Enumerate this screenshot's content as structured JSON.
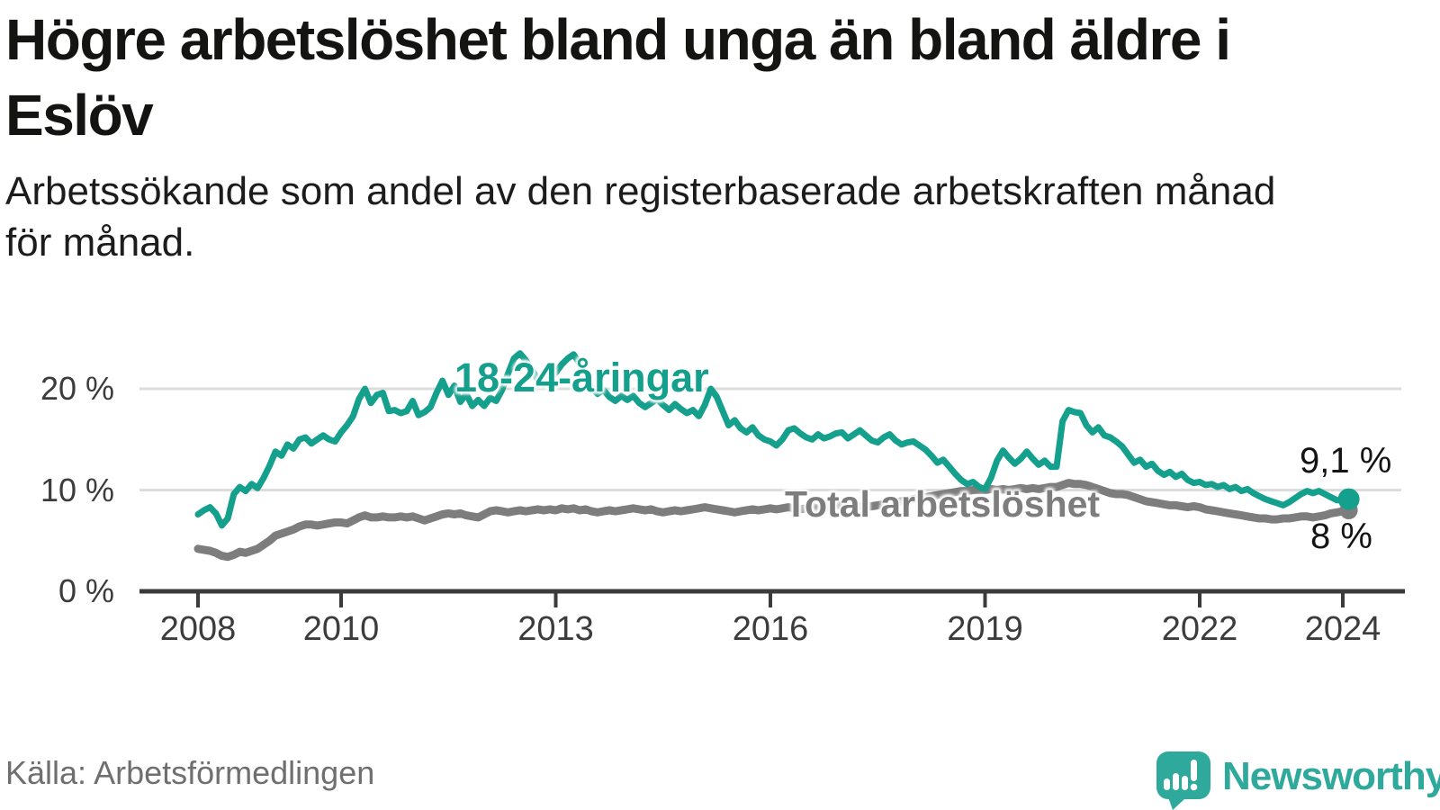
{
  "header": {
    "title_lines": [
      "Högre arbetslöshet bland unga än bland äldre i",
      "Eslöv"
    ],
    "subtitle_lines": [
      "Arbetssökande som andel av den registerbaserade arbetskraften månad",
      "för månad."
    ]
  },
  "chart_data": {
    "type": "line",
    "unit": "%",
    "x_start_year": 2008,
    "points_per_year": 12,
    "x_end": "2024-02",
    "grid": "horizontal",
    "ylim": [
      0,
      25
    ],
    "y_ticks": [
      {
        "value": 0,
        "label": "0 %"
      },
      {
        "value": 10,
        "label": "10 %"
      },
      {
        "value": 20,
        "label": "20 %"
      }
    ],
    "x_ticks": [
      {
        "year": 2008,
        "label": "2008"
      },
      {
        "year": 2010,
        "label": "2010"
      },
      {
        "year": 2013,
        "label": "2013"
      },
      {
        "year": 2016,
        "label": "2016"
      },
      {
        "year": 2019,
        "label": "2019"
      },
      {
        "year": 2022,
        "label": "2022"
      },
      {
        "year": 2024,
        "label": "2024"
      }
    ],
    "series": [
      {
        "id": "18-24",
        "name": "18-24-åringar",
        "color": "#15a08d",
        "end_label": "9,1 %",
        "values": [
          7.6,
          8.0,
          8.3,
          7.7,
          6.5,
          7.2,
          9.6,
          10.3,
          9.9,
          10.6,
          10.2,
          11.2,
          12.4,
          13.8,
          13.4,
          14.5,
          14.1,
          15.0,
          15.2,
          14.6,
          15.0,
          15.4,
          15.0,
          14.8,
          15.7,
          16.4,
          17.3,
          19.0,
          20.0,
          18.6,
          19.4,
          19.6,
          17.8,
          17.9,
          17.6,
          17.8,
          18.8,
          17.4,
          17.7,
          18.2,
          19.6,
          20.8,
          19.4,
          20.3,
          18.7,
          19.5,
          18.3,
          18.9,
          18.3,
          19.1,
          18.8,
          19.9,
          21.5,
          23.0,
          23.5,
          22.8,
          21.9,
          20.9,
          20.4,
          21.0,
          21.6,
          22.4,
          23.0,
          23.4,
          22.5,
          21.4,
          20.1,
          19.5,
          19.9,
          19.2,
          18.8,
          19.3,
          18.9,
          19.3,
          18.6,
          18.2,
          18.6,
          19.0,
          18.4,
          17.9,
          18.5,
          18.0,
          17.6,
          17.9,
          17.3,
          18.4,
          20.0,
          19.2,
          17.8,
          16.4,
          16.9,
          16.1,
          15.7,
          16.2,
          15.4,
          15.0,
          14.8,
          14.4,
          15.0,
          15.9,
          16.1,
          15.6,
          15.2,
          15.0,
          15.5,
          15.1,
          15.3,
          15.6,
          15.7,
          15.1,
          15.5,
          15.9,
          15.4,
          14.9,
          14.7,
          15.2,
          15.5,
          14.9,
          14.5,
          14.7,
          14.8,
          14.4,
          14.0,
          13.4,
          12.7,
          13.0,
          12.3,
          11.6,
          11.0,
          10.6,
          10.8,
          10.3,
          10.1,
          11.2,
          12.9,
          13.9,
          13.2,
          12.6,
          13.1,
          13.8,
          13.1,
          12.5,
          12.9,
          12.3,
          12.3,
          16.8,
          17.9,
          17.7,
          17.6,
          16.4,
          15.7,
          16.2,
          15.4,
          15.2,
          14.8,
          14.3,
          13.5,
          12.7,
          13.0,
          12.3,
          12.6,
          11.9,
          11.5,
          11.8,
          11.3,
          11.6,
          11.0,
          10.7,
          10.8,
          10.5,
          10.6,
          10.3,
          10.5,
          10.1,
          10.3,
          9.9,
          10.1,
          9.7,
          9.4,
          9.1,
          8.9,
          8.7,
          8.5,
          8.8,
          9.2,
          9.6,
          9.9,
          9.7,
          9.9,
          9.6,
          9.3,
          9.0,
          9.0,
          9.1
        ]
      },
      {
        "id": "total",
        "name": "Total arbetslöshet",
        "color": "#7d7d7d",
        "end_label": "8 %",
        "values": [
          4.2,
          4.1,
          4.0,
          3.8,
          3.5,
          3.4,
          3.6,
          3.9,
          3.8,
          4.0,
          4.2,
          4.6,
          5.0,
          5.5,
          5.7,
          5.9,
          6.1,
          6.4,
          6.6,
          6.6,
          6.5,
          6.6,
          6.7,
          6.8,
          6.8,
          6.7,
          7.0,
          7.3,
          7.5,
          7.3,
          7.3,
          7.4,
          7.3,
          7.3,
          7.4,
          7.3,
          7.4,
          7.2,
          7.0,
          7.2,
          7.4,
          7.6,
          7.7,
          7.6,
          7.7,
          7.5,
          7.4,
          7.3,
          7.6,
          7.9,
          8.0,
          7.9,
          7.8,
          7.9,
          8.0,
          7.9,
          8.0,
          8.1,
          8.0,
          8.1,
          8.0,
          8.2,
          8.1,
          8.2,
          8.0,
          8.1,
          7.9,
          7.8,
          7.9,
          8.0,
          7.9,
          8.0,
          8.1,
          8.2,
          8.1,
          8.0,
          8.1,
          7.9,
          7.8,
          7.9,
          8.0,
          7.9,
          8.0,
          8.1,
          8.2,
          8.3,
          8.2,
          8.1,
          8.0,
          7.9,
          7.8,
          7.9,
          8.0,
          8.1,
          8.0,
          8.1,
          8.2,
          8.1,
          8.2,
          8.3,
          8.2,
          8.1,
          8.2,
          8.3,
          8.2,
          8.3,
          8.4,
          8.5,
          8.5,
          8.4,
          8.3,
          8.4,
          8.3,
          8.4,
          8.5,
          8.6,
          8.7,
          8.8,
          8.9,
          9.0,
          9.1,
          9.2,
          9.3,
          9.4,
          9.5,
          9.6,
          9.7,
          9.8,
          9.9,
          9.9,
          10.0,
          10.0,
          10.0,
          10.1,
          10.0,
          10.1,
          10.0,
          10.1,
          10.2,
          10.1,
          10.2,
          10.1,
          10.2,
          10.3,
          10.3,
          10.5,
          10.7,
          10.6,
          10.6,
          10.5,
          10.3,
          10.1,
          9.9,
          9.7,
          9.6,
          9.6,
          9.5,
          9.3,
          9.1,
          8.9,
          8.8,
          8.7,
          8.6,
          8.5,
          8.5,
          8.4,
          8.3,
          8.4,
          8.3,
          8.1,
          8.0,
          7.9,
          7.8,
          7.7,
          7.6,
          7.5,
          7.4,
          7.3,
          7.2,
          7.2,
          7.1,
          7.1,
          7.2,
          7.2,
          7.3,
          7.4,
          7.4,
          7.3,
          7.4,
          7.5,
          7.7,
          7.8,
          7.9,
          8.0
        ]
      }
    ]
  },
  "colors": {
    "accent_teal": "#15a08d",
    "line_gray": "#7d7d7d",
    "axis": "#3b3b3b",
    "gridline": "#dcdcdc",
    "brand_teal": "#2ea99c"
  },
  "footer": {
    "source": "Källa: Arbetsförmedlingen",
    "brand": "Newsworthy"
  }
}
